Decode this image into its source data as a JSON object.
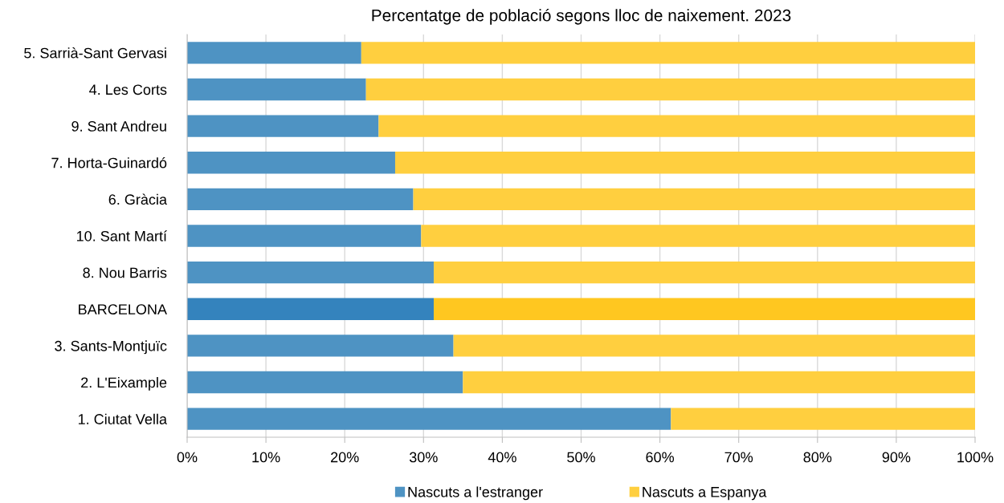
{
  "chart_data": {
    "type": "bar",
    "orientation": "horizontal",
    "stacked": true,
    "title": "Percentatge de població segons lloc de naixement. 2023",
    "categories": [
      "5. Sarrià-Sant Gervasi",
      "4. Les Corts",
      "9. Sant Andreu",
      "7. Horta-Guinardó",
      "6. Gràcia",
      "10. Sant Martí",
      "8. Nou Barris",
      "BARCELONA",
      "3. Sants-Montjuïc",
      "2. L'Eixample",
      "1. Ciutat Vella"
    ],
    "series": [
      {
        "name": "Nascuts a l'estranger",
        "color": "#4e93c3",
        "colors": [
          "#4e93c3",
          "#4e93c3",
          "#4e93c3",
          "#4e93c3",
          "#4e93c3",
          "#4e93c3",
          "#4e93c3",
          "#3483bd",
          "#4e93c3",
          "#4e93c3",
          "#4e93c3"
        ],
        "values": [
          22.1,
          22.7,
          24.3,
          26.4,
          28.7,
          29.7,
          31.3,
          31.3,
          33.8,
          35.0,
          61.4
        ]
      },
      {
        "name": "Nascuts a Espanya",
        "color": "#ffcf3f",
        "colors": [
          "#ffcf3f",
          "#ffcf3f",
          "#ffcf3f",
          "#ffcf3f",
          "#ffcf3f",
          "#ffcf3f",
          "#ffcf3f",
          "#ffc720",
          "#ffcf3f",
          "#ffcf3f",
          "#ffcf3f"
        ],
        "values": [
          77.9,
          77.3,
          75.7,
          73.6,
          71.3,
          70.3,
          68.7,
          68.7,
          66.2,
          65.0,
          38.6
        ]
      }
    ],
    "xlim": [
      0,
      100
    ],
    "xticks": [
      {
        "value": 0,
        "label": "0%"
      },
      {
        "value": 10,
        "label": "10%"
      },
      {
        "value": 20,
        "label": "20%"
      },
      {
        "value": 30,
        "label": "30%"
      },
      {
        "value": 40,
        "label": "40%"
      },
      {
        "value": 50,
        "label": "50%"
      },
      {
        "value": 60,
        "label": "60%"
      },
      {
        "value": 70,
        "label": "70%"
      },
      {
        "value": 80,
        "label": "80%"
      },
      {
        "value": 90,
        "label": "90%"
      },
      {
        "value": 100,
        "label": "100%"
      }
    ],
    "grid": "x",
    "legend": "bottom"
  }
}
